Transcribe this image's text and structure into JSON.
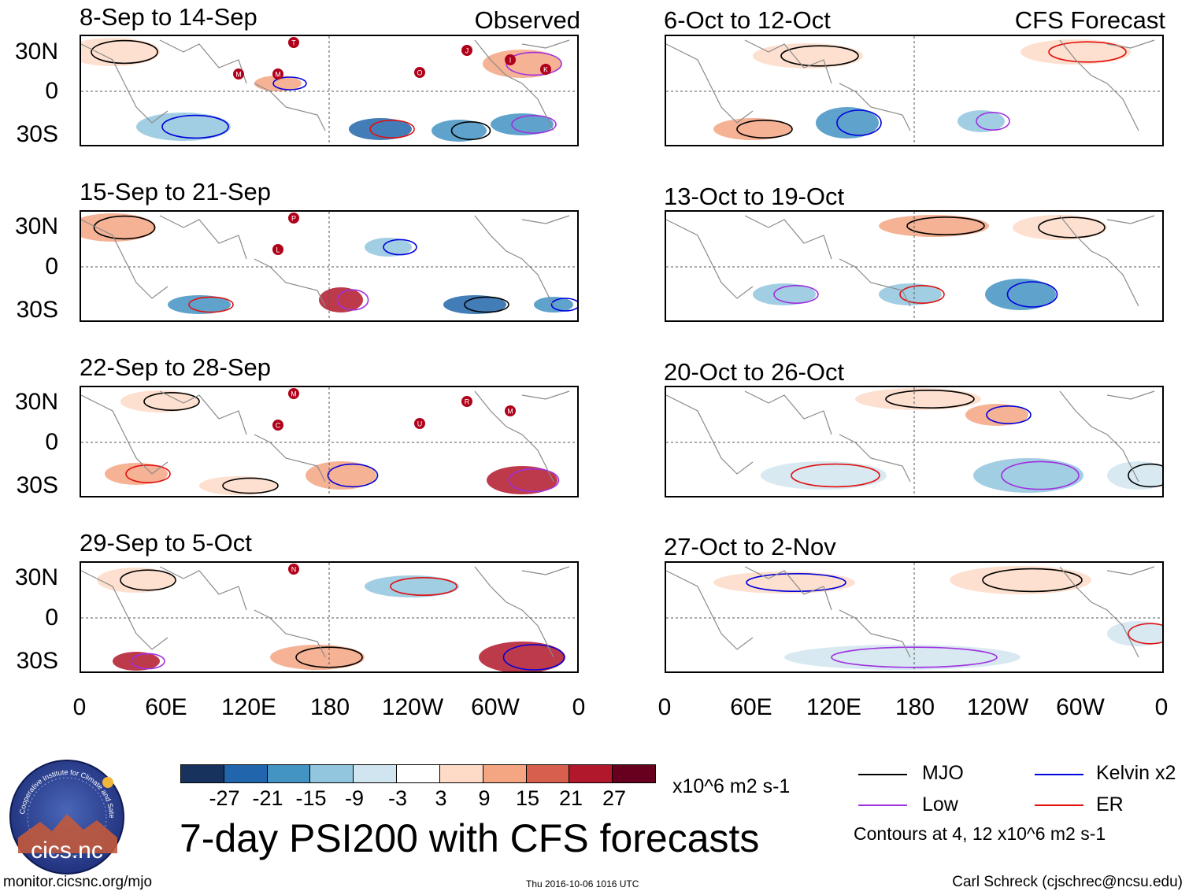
{
  "columns": {
    "left_tag": "Observed",
    "right_tag": "CFS Forecast"
  },
  "panels": {
    "observed": [
      {
        "title": "8-Sep to 14-Sep"
      },
      {
        "title": "15-Sep to 21-Sep"
      },
      {
        "title": "22-Sep to 28-Sep"
      },
      {
        "title": "29-Sep to 5-Oct"
      }
    ],
    "forecast": [
      {
        "title": "6-Oct to 12-Oct"
      },
      {
        "title": "13-Oct to 19-Oct"
      },
      {
        "title": "20-Oct to 26-Oct"
      },
      {
        "title": "27-Oct to 2-Nov"
      }
    ]
  },
  "axes": {
    "lat_labels": [
      "30N",
      "0",
      "30S"
    ],
    "lon_labels": [
      "0",
      "60E",
      "120E",
      "180",
      "120W",
      "60W",
      "0"
    ]
  },
  "colorbar": {
    "colors": [
      "#17325c",
      "#2166ac",
      "#4393c3",
      "#92c5de",
      "#d1e5f0",
      "#ffffff",
      "#fddbc7",
      "#f4a582",
      "#d6604d",
      "#b2182b",
      "#67001f"
    ],
    "labels": [
      "-27",
      "-21",
      "-15",
      "-9",
      "-3",
      "3",
      "9",
      "15",
      "21",
      "27"
    ],
    "units": "x10^6 m2 s-1"
  },
  "title": "7-day PSI200 with CFS forecasts",
  "legend": {
    "items": [
      {
        "label": "MJO",
        "color": "#000000"
      },
      {
        "label": "Kelvin x2",
        "color": "#0000dd"
      },
      {
        "label": "Low",
        "color": "#a030e0"
      },
      {
        "label": "ER",
        "color": "#e01010"
      }
    ],
    "contours_note": "Contours at 4, 12 x10^6 m2 s-1"
  },
  "logo": {
    "text": "cics.nc",
    "ring_text": "Cooperative Institute for Climate and Satellites"
  },
  "footer": {
    "url": "monitor.cicsnc.org/mjo",
    "timestamp": "Thu 2016-10-06 1016 UTC",
    "credit": "Carl Schreck (cjschrec@ncsu.edu)"
  },
  "storm_markers": {
    "panel1": [
      "T",
      "M",
      "O",
      "J",
      "I",
      "K",
      "M"
    ],
    "panel2": [
      "P",
      "L"
    ],
    "panel3": [
      "M",
      "C",
      "U",
      "R",
      "M"
    ],
    "panel4": [
      "N"
    ]
  }
}
